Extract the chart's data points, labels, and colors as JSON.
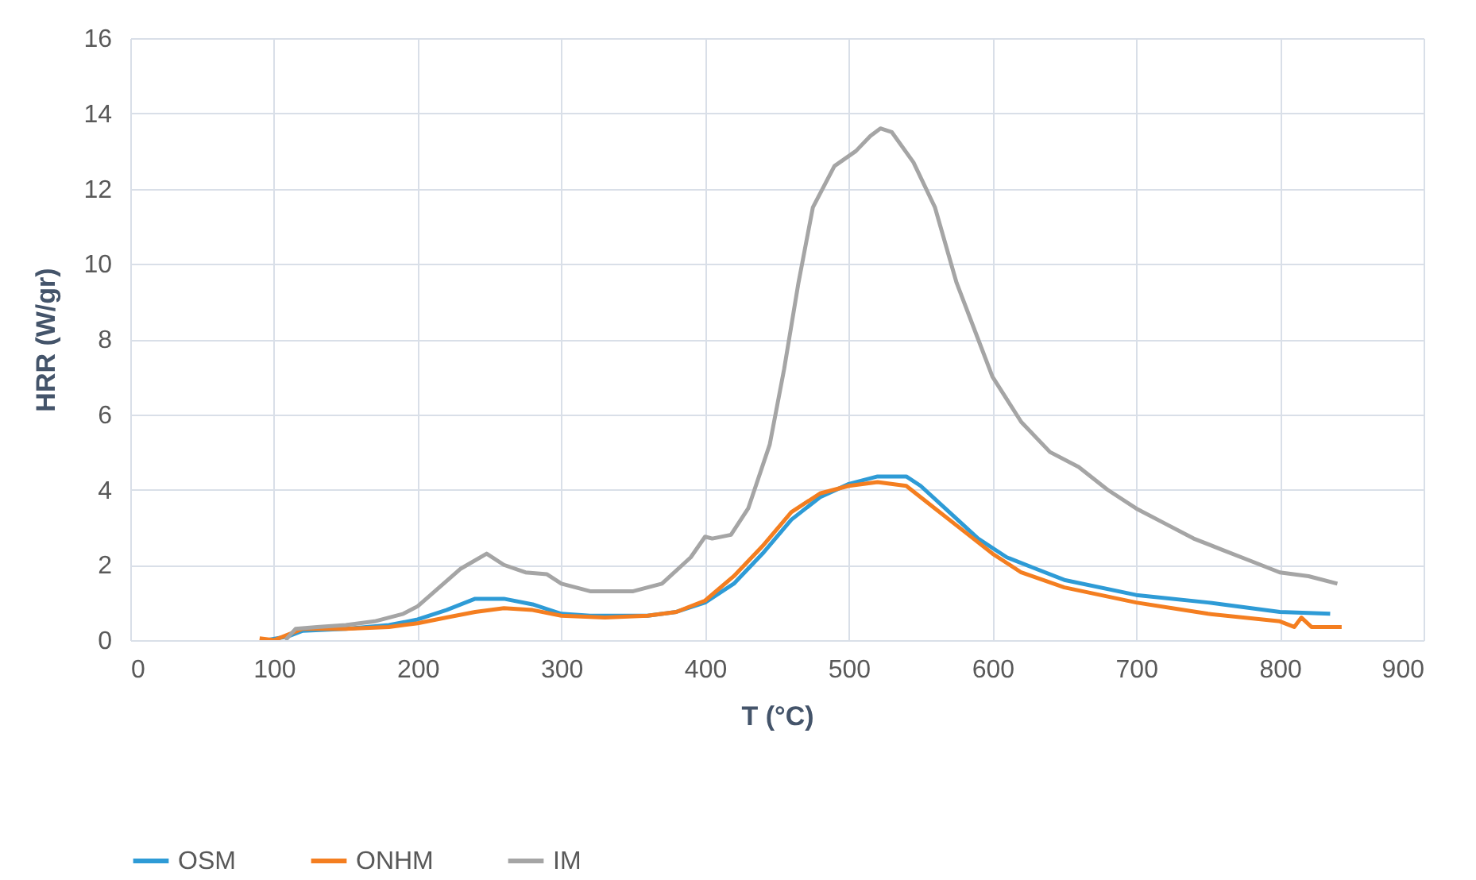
{
  "chart_data": {
    "type": "line",
    "xlabel": "T (°C)",
    "ylabel": "HRR (W/gr)",
    "xlim": [
      0,
      900
    ],
    "xticks": [
      0,
      100,
      200,
      300,
      400,
      500,
      600,
      700,
      800,
      900
    ],
    "ylim": [
      0,
      16
    ],
    "yticks": [
      0,
      2,
      4,
      6,
      8,
      10,
      12,
      14,
      16
    ],
    "grid": true,
    "legend": "bottom",
    "marker": "none",
    "line_style": "solid",
    "series": [
      {
        "name": "OSM",
        "color": "#2e9bd6",
        "x": [
          95,
          110,
          120,
          150,
          180,
          200,
          220,
          240,
          260,
          280,
          300,
          320,
          360,
          380,
          400,
          420,
          440,
          460,
          480,
          500,
          520,
          540,
          550,
          570,
          590,
          610,
          630,
          650,
          700,
          750,
          800,
          835
        ],
        "values": [
          0,
          0.1,
          0.25,
          0.3,
          0.4,
          0.55,
          0.8,
          1.1,
          1.1,
          0.95,
          0.7,
          0.65,
          0.65,
          0.75,
          1.0,
          1.5,
          2.3,
          3.2,
          3.8,
          4.15,
          4.35,
          4.35,
          4.1,
          3.4,
          2.7,
          2.2,
          1.9,
          1.6,
          1.2,
          1.0,
          0.75,
          0.7
        ]
      },
      {
        "name": "ONHM",
        "color": "#f47e20",
        "x": [
          90,
          100,
          110,
          120,
          150,
          180,
          200,
          220,
          240,
          260,
          280,
          300,
          330,
          360,
          380,
          400,
          420,
          440,
          460,
          480,
          500,
          520,
          540,
          560,
          580,
          600,
          620,
          650,
          700,
          750,
          800,
          810,
          815,
          822,
          843
        ],
        "values": [
          0.05,
          0,
          0.15,
          0.3,
          0.3,
          0.35,
          0.45,
          0.6,
          0.75,
          0.85,
          0.8,
          0.65,
          0.6,
          0.65,
          0.75,
          1.05,
          1.7,
          2.5,
          3.4,
          3.9,
          4.1,
          4.2,
          4.1,
          3.5,
          2.9,
          2.3,
          1.8,
          1.4,
          1.0,
          0.7,
          0.5,
          0.35,
          0.6,
          0.35,
          0.35
        ]
      },
      {
        "name": "IM",
        "color": "#a5a5a5",
        "x": [
          108,
          115,
          130,
          150,
          170,
          190,
          200,
          215,
          230,
          248,
          260,
          275,
          290,
          300,
          320,
          350,
          370,
          390,
          400,
          405,
          418,
          430,
          445,
          455,
          465,
          475,
          490,
          505,
          515,
          522,
          530,
          545,
          560,
          575,
          590,
          600,
          620,
          640,
          660,
          680,
          700,
          720,
          740,
          760,
          780,
          800,
          820,
          840
        ],
        "values": [
          0,
          0.3,
          0.35,
          0.4,
          0.5,
          0.7,
          0.9,
          1.4,
          1.9,
          2.3,
          2.0,
          1.8,
          1.75,
          1.5,
          1.3,
          1.3,
          1.5,
          2.2,
          2.75,
          2.7,
          2.8,
          3.5,
          5.2,
          7.2,
          9.5,
          11.5,
          12.6,
          13.0,
          13.4,
          13.6,
          13.5,
          12.7,
          11.5,
          9.5,
          8.0,
          7.0,
          5.8,
          5.0,
          4.6,
          4.0,
          3.5,
          3.1,
          2.7,
          2.4,
          2.1,
          1.8,
          1.7,
          1.5
        ]
      }
    ]
  }
}
